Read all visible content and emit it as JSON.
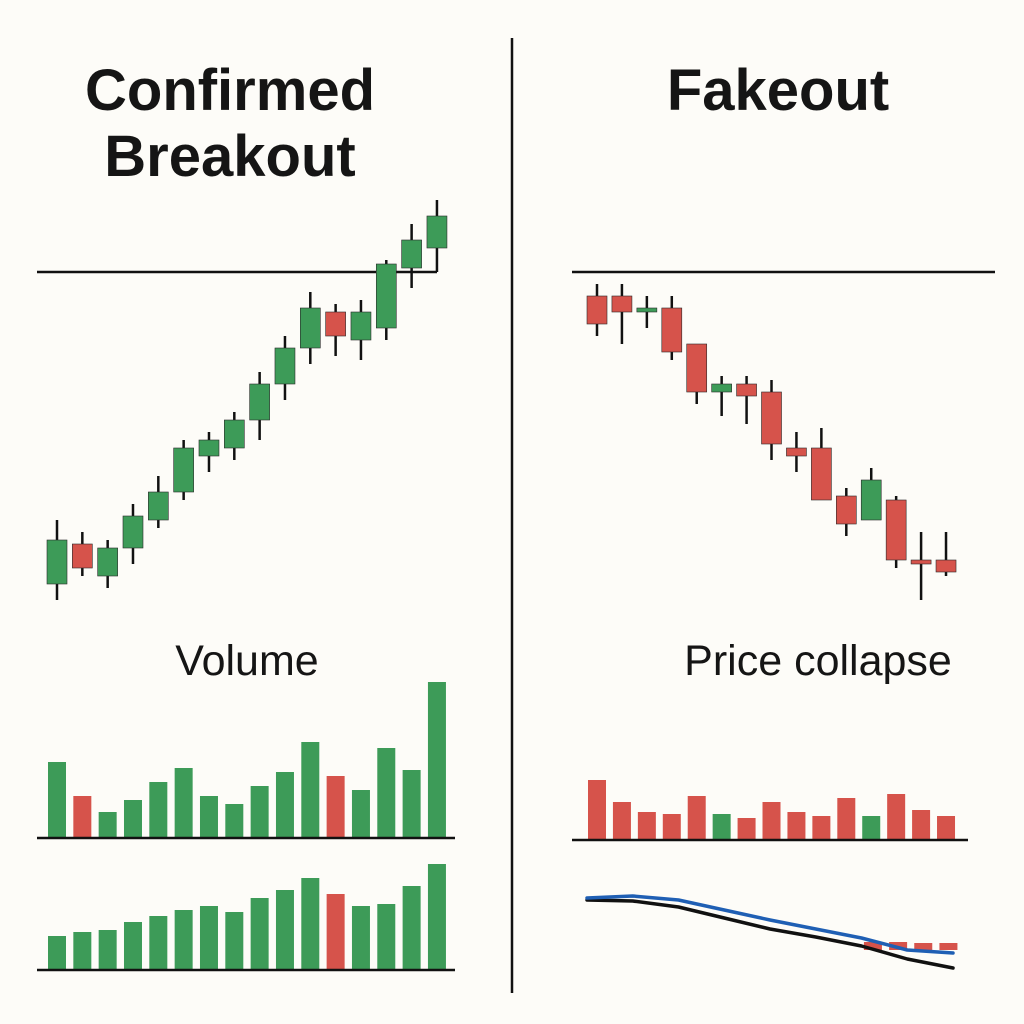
{
  "chart_data": [
    {
      "type": "candlestick",
      "title": "Confirmed Breakout",
      "up_color": "#3d9b58",
      "down_color": "#d6534b",
      "open": [
        4,
        14,
        6,
        13,
        20,
        27,
        36,
        38,
        45,
        54,
        63,
        72,
        65,
        68,
        83,
        88
      ],
      "high": [
        20,
        17,
        15,
        24,
        31,
        40,
        42,
        47,
        57,
        66,
        77,
        74,
        75,
        85,
        94,
        100
      ],
      "low": [
        0,
        6,
        3,
        9,
        18,
        25,
        32,
        35,
        40,
        50,
        59,
        61,
        60,
        65,
        78,
        82
      ],
      "close": [
        15,
        8,
        13,
        21,
        27,
        38,
        40,
        45,
        54,
        63,
        73,
        66,
        72,
        84,
        90,
        96
      ],
      "level": 82,
      "ylim": [
        0,
        100
      ]
    },
    {
      "type": "candlestick",
      "title": "Fakeout",
      "up_color": "#3d9b58",
      "down_color": "#d6534b",
      "open": [
        76,
        76,
        72,
        73,
        64,
        52,
        54,
        52,
        38,
        38,
        26,
        20,
        25,
        10,
        10
      ],
      "high": [
        79,
        79,
        76,
        76,
        64,
        56,
        56,
        55,
        42,
        43,
        28,
        33,
        26,
        17,
        17
      ],
      "low": [
        66,
        64,
        68,
        60,
        49,
        46,
        44,
        35,
        32,
        25,
        16,
        20,
        8,
        0,
        6
      ],
      "close": [
        69,
        72,
        73,
        62,
        52,
        54,
        51,
        39,
        36,
        25,
        19,
        30,
        10,
        9,
        7
      ],
      "level": 82,
      "ylim": [
        0,
        100
      ]
    },
    {
      "type": "bar",
      "title": "Volume",
      "values": [
        38,
        21,
        13,
        19,
        28,
        35,
        21,
        17,
        26,
        33,
        48,
        31,
        24,
        45,
        34,
        78
      ],
      "colors": [
        "#3d9b58",
        "#d6534b",
        "#3d9b58",
        "#3d9b58",
        "#3d9b58",
        "#3d9b58",
        "#3d9b58",
        "#3d9b58",
        "#3d9b58",
        "#3d9b58",
        "#3d9b58",
        "#d6534b",
        "#3d9b58",
        "#3d9b58",
        "#3d9b58",
        "#3d9b58"
      ],
      "ylim": [
        0,
        80
      ]
    },
    {
      "type": "bar",
      "values": [
        17,
        19,
        20,
        24,
        27,
        30,
        32,
        29,
        36,
        40,
        46,
        38,
        32,
        33,
        42,
        53
      ],
      "colors": [
        "#3d9b58",
        "#3d9b58",
        "#3d9b58",
        "#3d9b58",
        "#3d9b58",
        "#3d9b58",
        "#3d9b58",
        "#3d9b58",
        "#3d9b58",
        "#3d9b58",
        "#3d9b58",
        "#d6534b",
        "#3d9b58",
        "#3d9b58",
        "#3d9b58",
        "#3d9b58"
      ],
      "ylim": [
        0,
        80
      ]
    },
    {
      "type": "bar",
      "title": "Price collapse",
      "values": [
        30,
        19,
        14,
        13,
        22,
        13,
        11,
        19,
        14,
        12,
        21,
        12,
        23,
        15,
        12
      ],
      "colors": [
        "#d6534b",
        "#d6534b",
        "#d6534b",
        "#d6534b",
        "#d6534b",
        "#3d9b58",
        "#d6534b",
        "#d6534b",
        "#d6534b",
        "#d6534b",
        "#d6534b",
        "#3d9b58",
        "#d6534b",
        "#d6534b",
        "#d6534b"
      ],
      "ylim": [
        0,
        80
      ]
    },
    {
      "type": "line",
      "x": [
        0,
        1,
        2,
        3,
        4,
        5,
        6,
        7,
        8
      ],
      "xlim": [
        0,
        8
      ],
      "ylim": [
        0,
        100
      ],
      "series": [
        {
          "color": "#111111",
          "values": [
            90,
            89,
            83,
            72,
            61,
            53,
            44,
            31,
            22
          ]
        },
        {
          "color": "#1f5fb4",
          "values": [
            92,
            94,
            90,
            80,
            70,
            61,
            52,
            40,
            37
          ]
        }
      ],
      "bars": {
        "color": "#d6534b",
        "x": [
          6.25,
          6.8,
          7.35,
          7.9
        ],
        "values": [
          8,
          8,
          7,
          7
        ]
      }
    }
  ]
}
